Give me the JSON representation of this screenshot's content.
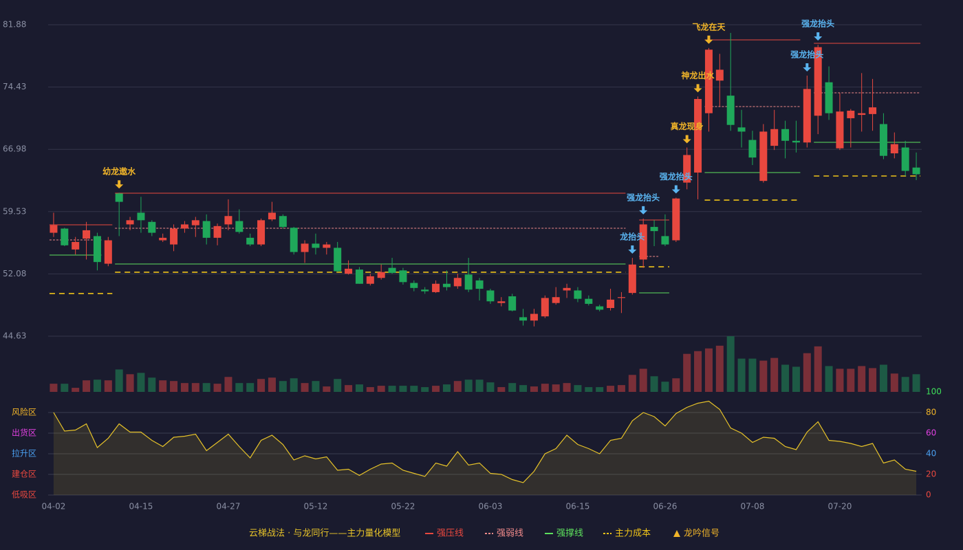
{
  "chart_data": [
    {
      "type": "candlestick",
      "categories": [
        "04-02",
        null,
        null,
        null,
        null,
        null,
        null,
        null,
        "04-15",
        null,
        null,
        null,
        null,
        null,
        null,
        null,
        "04-27",
        null,
        null,
        null,
        null,
        null,
        null,
        null,
        "05-12",
        null,
        null,
        null,
        null,
        null,
        null,
        null,
        "05-22",
        null,
        null,
        null,
        null,
        null,
        null,
        null,
        "06-03",
        null,
        null,
        null,
        null,
        null,
        null,
        null,
        "06-15",
        null,
        null,
        null,
        null,
        null,
        null,
        null,
        "06-26",
        null,
        null,
        null,
        null,
        null,
        null,
        null,
        "07-08",
        null,
        null,
        null,
        null,
        null,
        null,
        null,
        "07-20",
        null,
        null,
        null,
        null,
        null,
        null,
        null
      ],
      "open": [
        57.0,
        57.5,
        55.0,
        56.3,
        56.6,
        53.3,
        61.7,
        58.0,
        59.4,
        58.3,
        56.1,
        55.6,
        57.5,
        57.9,
        58.4,
        56.4,
        58.0,
        58.4,
        56.4,
        55.6,
        58.6,
        59.0,
        57.6,
        54.7,
        55.7,
        55.2,
        55.2,
        52.1,
        52.6,
        50.9,
        51.6,
        52.8,
        52.5,
        51.0,
        50.2,
        49.9,
        50.9,
        50.6,
        52.0,
        51.3,
        50.1,
        48.6,
        49.4,
        46.9,
        46.5,
        47.0,
        48.6,
        50.1,
        50.1,
        49.1,
        48.2,
        48.0,
        49.2,
        49.8,
        53.8,
        57.7,
        56.6,
        56.1,
        63.0,
        64.2,
        71.3,
        75.2,
        73.4,
        69.6,
        68.1,
        63.2,
        67.4,
        69.4,
        68.0,
        67.8,
        71.0,
        75.0,
        67.1,
        70.7,
        71.1,
        71.2,
        70.0,
        66.5,
        67.2,
        64.8
      ],
      "high": [
        59.4,
        57.6,
        56.5,
        58.3,
        57.0,
        56.5,
        61.8,
        58.9,
        61.3,
        58.5,
        56.9,
        58.0,
        58.4,
        58.9,
        59.2,
        58.1,
        61.0,
        59.8,
        56.9,
        58.7,
        60.7,
        59.2,
        57.7,
        56.1,
        56.9,
        55.9,
        55.9,
        53.7,
        52.9,
        52.1,
        53.2,
        54.0,
        52.8,
        51.3,
        50.5,
        51.3,
        52.5,
        52.1,
        54.0,
        51.6,
        50.3,
        49.3,
        49.7,
        47.9,
        47.9,
        49.5,
        50.5,
        50.9,
        50.5,
        49.5,
        48.4,
        50.3,
        49.9,
        54.0,
        58.7,
        58.5,
        59.2,
        61.2,
        67.2,
        73.3,
        79.1,
        78.4,
        80.9,
        71.7,
        69.2,
        70.0,
        71.7,
        70.4,
        70.4,
        75.8,
        79.5,
        76.9,
        73.7,
        71.8,
        76.1,
        75.4,
        71.3,
        69.0,
        68.0,
        66.6
      ],
      "low": [
        56.5,
        55.4,
        54.4,
        53.8,
        52.5,
        53.0,
        56.6,
        57.3,
        57.0,
        56.6,
        55.9,
        54.8,
        57.0,
        56.5,
        55.6,
        55.5,
        57.3,
        56.9,
        55.4,
        55.4,
        58.4,
        57.5,
        54.4,
        53.4,
        54.4,
        54.4,
        52.3,
        52.0,
        50.9,
        50.7,
        51.4,
        52.1,
        50.8,
        50.0,
        49.7,
        49.8,
        50.1,
        50.3,
        49.9,
        48.9,
        48.5,
        48.2,
        47.6,
        45.9,
        45.8,
        46.8,
        48.4,
        49.2,
        48.7,
        48.3,
        47.6,
        47.7,
        47.4,
        49.6,
        52.8,
        55.4,
        55.4,
        55.9,
        62.2,
        61.0,
        69.1,
        72.1,
        69.2,
        67.2,
        65.1,
        63.0,
        66.9,
        65.9,
        66.6,
        67.2,
        68.8,
        70.5,
        66.9,
        67.2,
        69.1,
        69.2,
        65.8,
        65.9,
        63.8,
        63.3
      ],
      "close": [
        57.9,
        55.5,
        55.9,
        57.3,
        53.5,
        56.1,
        60.7,
        58.5,
        58.5,
        57.0,
        56.4,
        57.5,
        58.0,
        58.5,
        56.4,
        57.8,
        59.0,
        57.1,
        55.6,
        58.5,
        59.4,
        57.7,
        54.7,
        55.7,
        55.2,
        55.6,
        52.4,
        52.7,
        50.9,
        51.8,
        52.3,
        52.2,
        51.1,
        50.4,
        50.0,
        50.9,
        50.5,
        51.6,
        50.2,
        50.3,
        48.8,
        48.8,
        47.7,
        46.5,
        47.3,
        49.2,
        49.3,
        50.4,
        49.1,
        48.5,
        47.8,
        49.0,
        49.3,
        53.2,
        58.0,
        57.2,
        55.6,
        61.1,
        66.3,
        73.0,
        78.9,
        76.5,
        69.9,
        69.1,
        66.0,
        69.1,
        69.4,
        68.0,
        67.8,
        74.2,
        79.2,
        71.3,
        71.5,
        71.6,
        71.3,
        72.0,
        66.2,
        67.6,
        64.4,
        64.0
      ],
      "up_color": "#e8483f",
      "down_color": "#1fa85a",
      "ylim": [
        44.63,
        81.88
      ],
      "yticks": [
        44.63,
        52.08,
        59.53,
        66.98,
        74.43,
        81.88
      ],
      "grid": true,
      "lines": [
        {
          "name": "强压线",
          "color": "#e8483f",
          "dashed": false,
          "segments": [
            {
              "from": 0,
              "to": 5,
              "value": 57.95
            },
            {
              "from": 6,
              "to": 52,
              "value": 61.73
            },
            {
              "from": 54,
              "to": 56,
              "value": 58.53
            },
            {
              "from": 60,
              "to": 68,
              "value": 80.07
            },
            {
              "from": 70,
              "to": 79,
              "value": 79.66
            }
          ]
        },
        {
          "name": "强弱线",
          "color": "#f08a8a",
          "dashed": true,
          "segments": [
            {
              "from": 0,
              "to": 4,
              "value": 56.14
            },
            {
              "from": 6,
              "to": 52,
              "value": 57.54
            },
            {
              "from": 54,
              "to": 55,
              "value": 54.17
            },
            {
              "from": 60,
              "to": 68,
              "value": 72.09
            },
            {
              "from": 70,
              "to": 79,
              "value": 73.74
            }
          ]
        },
        {
          "name": "强撑线",
          "color": "#5de05d",
          "dashed": false,
          "segments": [
            {
              "from": 0,
              "to": 4,
              "value": 54.33
            },
            {
              "from": 6,
              "to": 52,
              "value": 53.26
            },
            {
              "from": 54,
              "to": 56,
              "value": 49.81
            },
            {
              "from": 60,
              "to": 68,
              "value": 64.2
            },
            {
              "from": 70,
              "to": 79,
              "value": 67.82
            }
          ]
        },
        {
          "name": "主力成本",
          "color": "#f0c419",
          "dashed": true,
          "segments": [
            {
              "from": 0,
              "to": 5,
              "value": 49.73
            },
            {
              "from": 6,
              "to": 52,
              "value": 52.28
            },
            {
              "from": 54,
              "to": 56,
              "value": 52.93
            },
            {
              "from": 60,
              "to": 68,
              "value": 60.91
            },
            {
              "from": 70,
              "to": 79,
              "value": 63.79
            }
          ]
        }
      ],
      "signal_name": "龙吟信号",
      "signal_color": "#f0b429",
      "signals": [
        {
          "index": 6,
          "label": "幼龙遨水",
          "color": "#f0b429"
        },
        {
          "index": 53,
          "label": "龙抬头",
          "color": "#5ab4f0"
        },
        {
          "index": 54,
          "label": "强龙抬头",
          "color": "#5ab4f0"
        },
        {
          "index": 57,
          "label": "强龙抬头",
          "color": "#5ab4f0"
        },
        {
          "index": 58,
          "label": "真龙现身",
          "color": "#f0b429"
        },
        {
          "index": 59,
          "label": "神龙出水",
          "color": "#f0b429"
        },
        {
          "index": 60,
          "label": "飞龙在天",
          "color": "#f0b429"
        },
        {
          "index": 69,
          "label": "强龙抬头",
          "color": "#5ab4f0"
        },
        {
          "index": 70,
          "label": "强龙抬头",
          "color": "#5ab4f0"
        }
      ],
      "caption": "云梯战法 · 与龙同行——主力量化模型"
    },
    {
      "type": "bar",
      "values": [
        12,
        12,
        6,
        17,
        18,
        17,
        33,
        26,
        28,
        21,
        17,
        16,
        13,
        13,
        13,
        12,
        22,
        13,
        13,
        19,
        21,
        16,
        20,
        13,
        16,
        8,
        19,
        10,
        11,
        7,
        9,
        9,
        9,
        9,
        7,
        9,
        11,
        16,
        18,
        18,
        14,
        7,
        13,
        10,
        8,
        12,
        11,
        13,
        10,
        7,
        7,
        9,
        10,
        25,
        34,
        23,
        15,
        20,
        56,
        60,
        64,
        68,
        82,
        49,
        49,
        46,
        50,
        40,
        37,
        57,
        67,
        38,
        34,
        34,
        38,
        35,
        40,
        27,
        22,
        26
      ],
      "ylim": [
        0,
        82
      ],
      "up_color": "#7a2f38",
      "down_color": "#1d5a45"
    },
    {
      "type": "line",
      "values": [
        80,
        62,
        63,
        69,
        46,
        55,
        69,
        61,
        61,
        53,
        47,
        56,
        57,
        59,
        43,
        51,
        59,
        47,
        36,
        53,
        58,
        49,
        34,
        38,
        35,
        37,
        24,
        25,
        19,
        25,
        30,
        31,
        24,
        21,
        18,
        31,
        28,
        42,
        29,
        31,
        21,
        20,
        15,
        12,
        23,
        40,
        45,
        58,
        49,
        45,
        40,
        53,
        55,
        72,
        80,
        76,
        67,
        79,
        85,
        89,
        91,
        83,
        65,
        60,
        51,
        56,
        55,
        47,
        44,
        61,
        71,
        53,
        52,
        50,
        47,
        50,
        31,
        34,
        25,
        23
      ],
      "color": "#e6c229",
      "ylim": [
        0,
        100
      ],
      "yticks": [
        0,
        20,
        40,
        60,
        80,
        100
      ],
      "ytick_colors": [
        "#e8483f",
        "#e8483f",
        "#4a9ff0",
        "#e040e0",
        "#f0b429",
        "#3ee05a"
      ],
      "zones": [
        {
          "value": 80,
          "label": "风险区",
          "color": "#f0b429"
        },
        {
          "value": 60,
          "label": "出货区",
          "color": "#e040e0"
        },
        {
          "value": 40,
          "label": "拉升区",
          "color": "#4a9ff0"
        },
        {
          "value": 20,
          "label": "建仓区",
          "color": "#e8483f"
        },
        {
          "value": 0,
          "label": "低吸区",
          "color": "#e8483f"
        }
      ]
    }
  ]
}
